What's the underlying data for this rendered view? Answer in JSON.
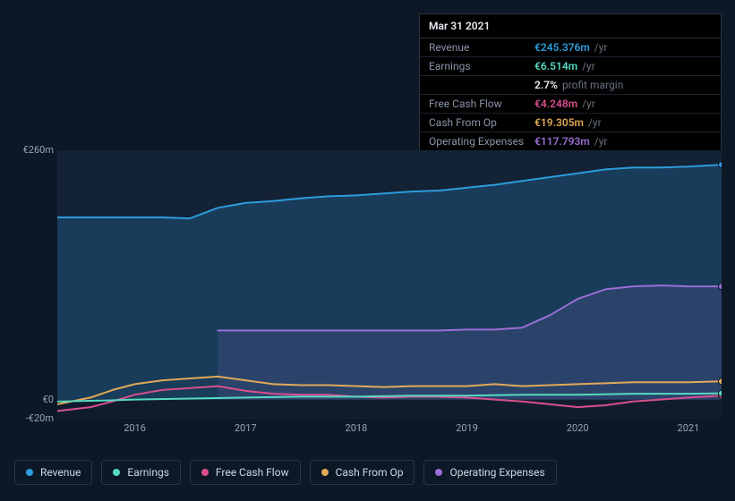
{
  "tooltip": {
    "date": "Mar 31 2021",
    "rows": [
      {
        "label": "Revenue",
        "value": "€245.376m",
        "unit": "/yr",
        "color": "#2d9cdb"
      },
      {
        "label": "Earnings",
        "value": "€6.514m",
        "unit": "/yr",
        "color": "#57d9c1"
      },
      {
        "label": "",
        "value": "2.7%",
        "unit": "profit margin",
        "color": "#e8ecf2"
      },
      {
        "label": "Free Cash Flow",
        "value": "€4.248m",
        "unit": "/yr",
        "color": "#d84f8b"
      },
      {
        "label": "Cash From Op",
        "value": "€19.305m",
        "unit": "/yr",
        "color": "#e0a958"
      },
      {
        "label": "Operating Expenses",
        "value": "€117.793m",
        "unit": "/yr",
        "color": "#9b6dd7"
      }
    ]
  },
  "chart": {
    "type": "area-line",
    "background": "#0d1826",
    "plot_background_top": "#132235",
    "plot_background_bottom": "#101c2d",
    "grid_color": "#1a2636",
    "text_color": "#98a2b5",
    "x_range": [
      2015.3,
      2021.3
    ],
    "x_ticks": [
      2016,
      2017,
      2018,
      2019,
      2020,
      2021
    ],
    "y_range": [
      -20,
      260
    ],
    "y_ticks": [
      {
        "value": 260,
        "label": "€260m"
      },
      {
        "value": 0,
        "label": "€0"
      },
      {
        "value": -20,
        "label": "-€20m"
      }
    ],
    "series": [
      {
        "name": "Revenue",
        "color": "#2d9cdb",
        "fill": true,
        "fill_opacity": 0.22,
        "data": [
          [
            2015.3,
            190
          ],
          [
            2015.75,
            190
          ],
          [
            2016.0,
            190
          ],
          [
            2016.25,
            190
          ],
          [
            2016.5,
            189
          ],
          [
            2016.75,
            200
          ],
          [
            2017.0,
            205
          ],
          [
            2017.25,
            207
          ],
          [
            2017.5,
            210
          ],
          [
            2017.75,
            212
          ],
          [
            2018.0,
            213
          ],
          [
            2018.25,
            215
          ],
          [
            2018.5,
            217
          ],
          [
            2018.75,
            218
          ],
          [
            2019.0,
            221
          ],
          [
            2019.25,
            224
          ],
          [
            2019.5,
            228
          ],
          [
            2019.75,
            232
          ],
          [
            2020.0,
            236
          ],
          [
            2020.25,
            240
          ],
          [
            2020.5,
            242
          ],
          [
            2020.75,
            242
          ],
          [
            2021.0,
            243
          ],
          [
            2021.3,
            245
          ]
        ]
      },
      {
        "name": "Operating Expenses",
        "color": "#9b6dd7",
        "fill": true,
        "fill_opacity": 0.15,
        "data": [
          [
            2016.75,
            72
          ],
          [
            2017.0,
            72
          ],
          [
            2017.25,
            72
          ],
          [
            2017.5,
            72
          ],
          [
            2017.75,
            72
          ],
          [
            2018.0,
            72
          ],
          [
            2018.25,
            72
          ],
          [
            2018.5,
            72
          ],
          [
            2018.75,
            72
          ],
          [
            2019.0,
            73
          ],
          [
            2019.25,
            73
          ],
          [
            2019.5,
            75
          ],
          [
            2019.75,
            88
          ],
          [
            2020.0,
            105
          ],
          [
            2020.25,
            115
          ],
          [
            2020.5,
            118
          ],
          [
            2020.75,
            119
          ],
          [
            2021.0,
            118
          ],
          [
            2021.3,
            118
          ]
        ]
      },
      {
        "name": "Cash From Op",
        "color": "#e0a958",
        "fill": false,
        "data": [
          [
            2015.3,
            -5
          ],
          [
            2015.6,
            2
          ],
          [
            2015.8,
            10
          ],
          [
            2016.0,
            16
          ],
          [
            2016.25,
            20
          ],
          [
            2016.5,
            22
          ],
          [
            2016.75,
            24
          ],
          [
            2017.0,
            20
          ],
          [
            2017.25,
            16
          ],
          [
            2017.5,
            15
          ],
          [
            2017.75,
            15
          ],
          [
            2018.0,
            14
          ],
          [
            2018.25,
            13
          ],
          [
            2018.5,
            14
          ],
          [
            2018.75,
            14
          ],
          [
            2019.0,
            14
          ],
          [
            2019.25,
            16
          ],
          [
            2019.5,
            14
          ],
          [
            2019.75,
            15
          ],
          [
            2020.0,
            16
          ],
          [
            2020.25,
            17
          ],
          [
            2020.5,
            18
          ],
          [
            2020.75,
            18
          ],
          [
            2021.0,
            18
          ],
          [
            2021.3,
            19
          ]
        ]
      },
      {
        "name": "Free Cash Flow",
        "color": "#d84f8b",
        "fill": false,
        "data": [
          [
            2015.3,
            -12
          ],
          [
            2015.6,
            -8
          ],
          [
            2015.8,
            -2
          ],
          [
            2016.0,
            5
          ],
          [
            2016.25,
            10
          ],
          [
            2016.5,
            12
          ],
          [
            2016.75,
            14
          ],
          [
            2017.0,
            9
          ],
          [
            2017.25,
            6
          ],
          [
            2017.5,
            5
          ],
          [
            2017.75,
            5
          ],
          [
            2018.0,
            3
          ],
          [
            2018.25,
            2
          ],
          [
            2018.5,
            3
          ],
          [
            2018.75,
            3
          ],
          [
            2019.0,
            2
          ],
          [
            2019.25,
            0
          ],
          [
            2019.5,
            -2
          ],
          [
            2019.75,
            -5
          ],
          [
            2020.0,
            -8
          ],
          [
            2020.25,
            -6
          ],
          [
            2020.5,
            -2
          ],
          [
            2020.75,
            0
          ],
          [
            2021.0,
            2
          ],
          [
            2021.3,
            4
          ]
        ]
      },
      {
        "name": "Earnings",
        "color": "#57d9c1",
        "fill": false,
        "data": [
          [
            2015.3,
            -2
          ],
          [
            2015.75,
            -1
          ],
          [
            2016.0,
            0
          ],
          [
            2016.5,
            1
          ],
          [
            2017.0,
            2
          ],
          [
            2017.5,
            3
          ],
          [
            2018.0,
            3
          ],
          [
            2018.5,
            4
          ],
          [
            2019.0,
            4
          ],
          [
            2019.5,
            5
          ],
          [
            2020.0,
            5
          ],
          [
            2020.5,
            6
          ],
          [
            2021.0,
            6
          ],
          [
            2021.3,
            6.5
          ]
        ]
      }
    ]
  },
  "legend": [
    {
      "label": "Revenue",
      "color": "#2d9cdb"
    },
    {
      "label": "Earnings",
      "color": "#57d9c1"
    },
    {
      "label": "Free Cash Flow",
      "color": "#d84f8b"
    },
    {
      "label": "Cash From Op",
      "color": "#e0a958"
    },
    {
      "label": "Operating Expenses",
      "color": "#9b6dd7"
    }
  ]
}
